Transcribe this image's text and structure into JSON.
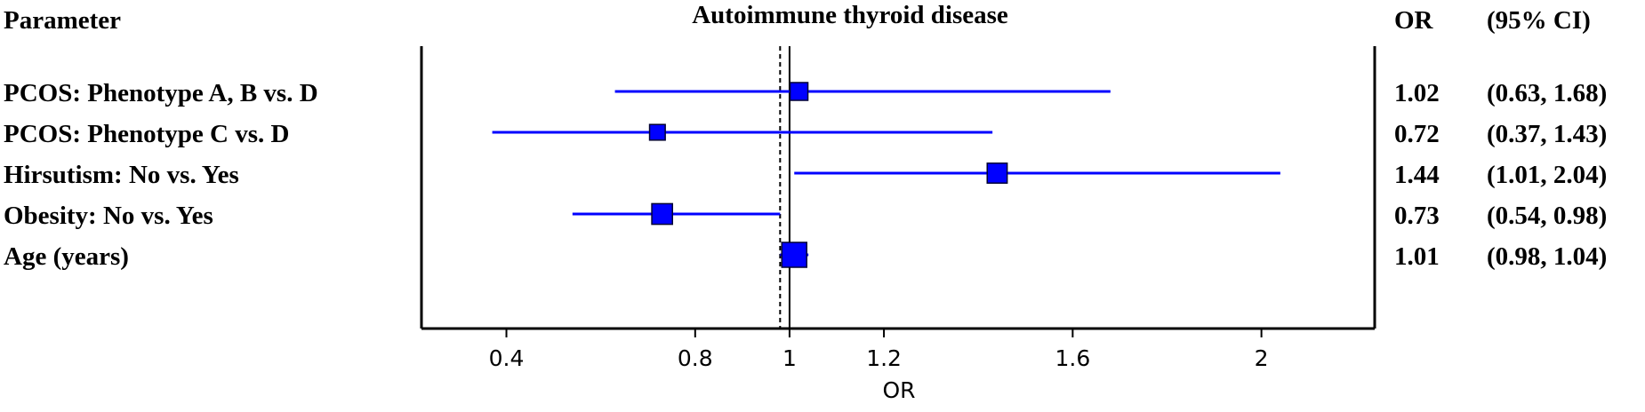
{
  "header": {
    "parameter_label": "Parameter",
    "plot_title": "Autoimmune thyroid disease",
    "or_label": "OR",
    "ci_label": "(95% CI)"
  },
  "chart_data": {
    "type": "scatter",
    "subtype": "forest-plot",
    "title": "Autoimmune thyroid disease",
    "xlabel": "OR",
    "xlim": [
      0.22,
      2.24
    ],
    "xticks": [
      0.4,
      0.8,
      1,
      1.2,
      1.6,
      2
    ],
    "xtick_labels": [
      "0.4",
      "0.8",
      "1",
      "1.2",
      "1.6",
      "2"
    ],
    "reference_lines": [
      {
        "x": 1.0,
        "style": "solid"
      },
      {
        "x": 0.98,
        "style": "dashed"
      }
    ],
    "marker_color": "#0000ff",
    "rows": [
      {
        "label": "PCOS: Phenotype A, B vs. D",
        "or": 1.02,
        "lower": 0.63,
        "upper": 1.68,
        "or_text": "1.02",
        "ci_text": "(0.63, 1.68)",
        "weight": 0.5
      },
      {
        "label": "PCOS: Phenotype C vs. D",
        "or": 0.72,
        "lower": 0.37,
        "upper": 1.43,
        "or_text": "0.72",
        "ci_text": "(0.37, 1.43)",
        "weight": 0.35
      },
      {
        "label": "Hirsutism: No vs. Yes",
        "or": 1.44,
        "lower": 1.01,
        "upper": 2.04,
        "or_text": "1.44",
        "ci_text": "(1.01, 2.04)",
        "weight": 0.65
      },
      {
        "label": "Obesity: No vs. Yes",
        "or": 0.73,
        "lower": 0.54,
        "upper": 0.98,
        "or_text": "0.73",
        "ci_text": "(0.54, 0.98)",
        "weight": 0.7
      },
      {
        "label": "Age (years)",
        "or": 1.01,
        "lower": 0.98,
        "upper": 1.04,
        "or_text": "1.01",
        "ci_text": "(0.98, 1.04)",
        "weight": 1.0
      }
    ]
  }
}
